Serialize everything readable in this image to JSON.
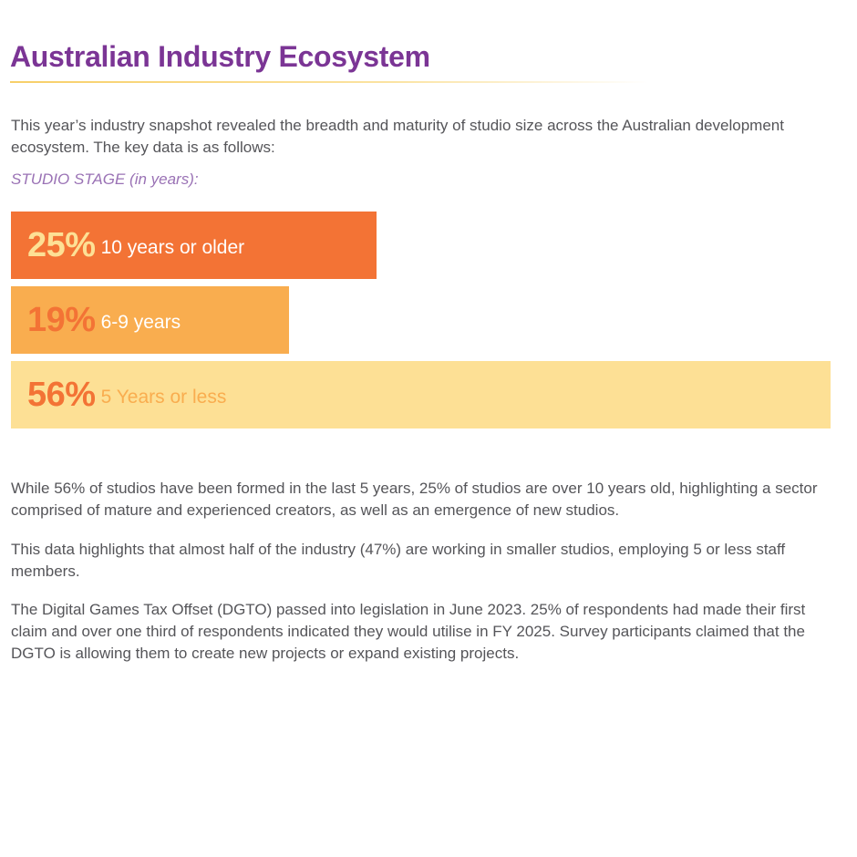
{
  "title": "Australian Industry Ecosystem",
  "intro": "This year’s industry snapshot revealed the breadth and maturity of studio size across the Australian development ecosystem.  The key data is as follows:",
  "stage_label": "STUDIO STAGE (in years):",
  "chart_data": {
    "type": "bar",
    "orientation": "horizontal",
    "title": "STUDIO STAGE (in years):",
    "categories": [
      "10 years or older",
      "6-9 years",
      "5 Years or less"
    ],
    "values": [
      25,
      19,
      56
    ],
    "value_labels": [
      "25%",
      "19%",
      "56%"
    ],
    "unit": "%",
    "xlim": [
      0,
      56
    ],
    "grid": false,
    "colors": {
      "bar_fill": [
        "#f37335",
        "#f9ad4f",
        "#fde095"
      ],
      "value_text": [
        "#fde095",
        "#f37335",
        "#f37335"
      ],
      "label_text": [
        "#ffffff",
        "#ffffff",
        "#f9ad4f"
      ]
    }
  },
  "paragraphs": [
    "While 56% of studios have been formed in the last 5 years, 25% of studios are over 10 years old, highlighting a sector comprised of mature and experienced creators, as well as an emergence of new studios.",
    "This data highlights that almost half of the industry (47%) are working in smaller studios, employing 5 or less staff members.",
    "The Digital Games Tax Offset (DGTO) passed into legislation in June 2023. 25% of respondents had made their first claim and over one third of respondents indicated they would utilise in FY 2025. Survey participants claimed that the DGTO is allowing them to create new projects or expand existing projects."
  ],
  "colors": {
    "title": "#7b3595",
    "body_text": "#555559",
    "stage_label": "#9a72b5"
  }
}
